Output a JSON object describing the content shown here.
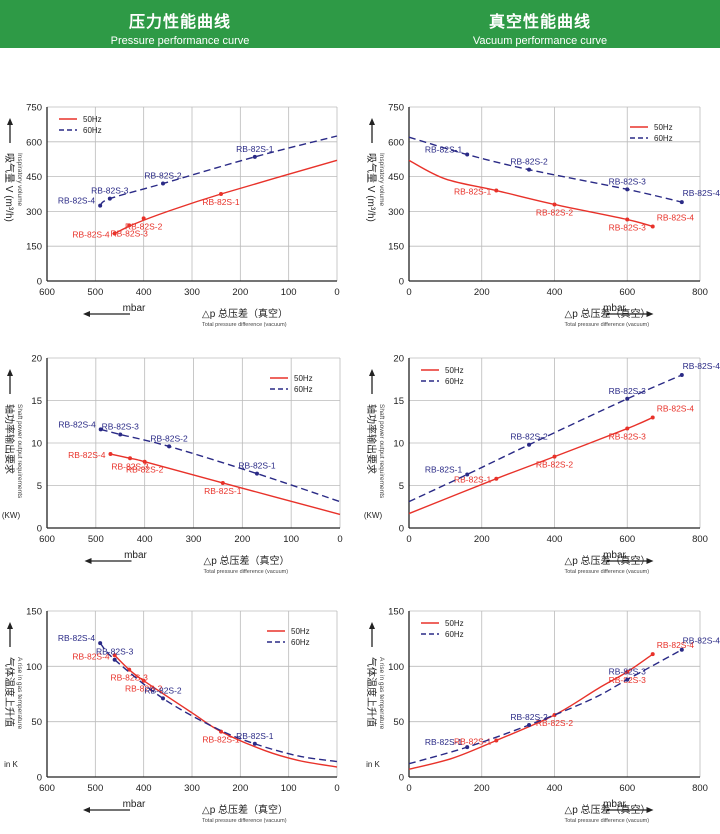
{
  "banners": {
    "left": {
      "cn": "压力性能曲线",
      "en": "Pressure performance curve"
    },
    "right": {
      "cn": "真空性能曲线",
      "en": "Vacuum performance curve"
    }
  },
  "colors": {
    "s50": "#e8322a",
    "s60": "#2a2a86",
    "axis": "#222222",
    "grid": "#bbbbbb",
    "banner": "#2e9a46"
  },
  "chart_data": [
    {
      "id": "pressure-volume",
      "type": "line",
      "xlim": [
        600,
        0
      ],
      "ylim": [
        0,
        750
      ],
      "xticks": [
        600,
        500,
        400,
        300,
        200,
        100,
        0
      ],
      "yticks": [
        0,
        150,
        300,
        450,
        600,
        750
      ],
      "ylabel": {
        "cn": "吸气量 V (m³/h)",
        "en": "Inspiratory volume"
      },
      "xlabel": {
        "unit": "mbar",
        "cn": "△p  总压差（真空）",
        "en": "Total pressure difference (vacuum)"
      },
      "legend": "top-left",
      "series": [
        {
          "name": "50Hz",
          "points": [
            [
              460,
              205
            ],
            [
              420,
              245
            ],
            [
              350,
              300
            ],
            [
              240,
              375
            ],
            [
              0,
              520
            ]
          ],
          "markers": [
            {
              "label": "RB-82S-4",
              "x": 460,
              "y": 205
            },
            {
              "label": "RB-82S-3",
              "x": 430,
              "y": 240
            },
            {
              "label": "RB-82S-2",
              "x": 400,
              "y": 270
            },
            {
              "label": "RB-82S-1",
              "x": 240,
              "y": 375
            }
          ]
        },
        {
          "name": "60Hz",
          "points": [
            [
              490,
              325
            ],
            [
              470,
              355
            ],
            [
              360,
              420
            ],
            [
              170,
              535
            ],
            [
              0,
              625
            ]
          ],
          "markers": [
            {
              "label": "RB-82S-4",
              "x": 490,
              "y": 325
            },
            {
              "label": "RB-82S-3",
              "x": 470,
              "y": 355
            },
            {
              "label": "RB-82S-2",
              "x": 360,
              "y": 420
            },
            {
              "label": "RB-82S-1",
              "x": 170,
              "y": 535
            }
          ]
        }
      ]
    },
    {
      "id": "vacuum-volume",
      "type": "line",
      "xlim": [
        0,
        800
      ],
      "ylim": [
        0,
        750
      ],
      "xticks": [
        0,
        200,
        400,
        600,
        800
      ],
      "yticks": [
        0,
        150,
        300,
        450,
        600,
        750
      ],
      "ylabel": {
        "cn": "吸气量 V (m³/h)",
        "en": "Inspiratory volume"
      },
      "xlabel": {
        "unit": "mbar",
        "cn": "△p  总压差（真空）",
        "en": "Total pressure difference (vacuum)"
      },
      "legend": "top-right",
      "series": [
        {
          "name": "50Hz",
          "points": [
            [
              0,
              520
            ],
            [
              100,
              440
            ],
            [
              240,
              390
            ],
            [
              400,
              330
            ],
            [
              600,
              265
            ],
            [
              670,
              235
            ]
          ],
          "markers": [
            {
              "label": "RB-82S-1",
              "x": 240,
              "y": 390
            },
            {
              "label": "RB-82S-2",
              "x": 400,
              "y": 330
            },
            {
              "label": "RB-82S-3",
              "x": 600,
              "y": 265
            },
            {
              "label": "RB-82S-4",
              "x": 670,
              "y": 235
            }
          ]
        },
        {
          "name": "60Hz",
          "points": [
            [
              0,
              620
            ],
            [
              160,
              545
            ],
            [
              330,
              480
            ],
            [
              600,
              395
            ],
            [
              750,
              340
            ]
          ],
          "markers": [
            {
              "label": "RB-82S-1",
              "x": 160,
              "y": 545
            },
            {
              "label": "RB-82S-2",
              "x": 330,
              "y": 480
            },
            {
              "label": "RB-82S-3",
              "x": 600,
              "y": 395
            },
            {
              "label": "RB-82S-4",
              "x": 750,
              "y": 340
            }
          ]
        }
      ]
    },
    {
      "id": "pressure-power",
      "type": "line",
      "xlim": [
        600,
        0
      ],
      "ylim": [
        0,
        20
      ],
      "xticks": [
        600,
        500,
        400,
        300,
        200,
        100,
        0
      ],
      "yticks": [
        0,
        5,
        10,
        15,
        20
      ],
      "ylabel": {
        "cn": "轴功率输出要求",
        "en": "Shaft power output requirements",
        "unit": "(KW)"
      },
      "xlabel": {
        "unit": "mbar",
        "cn": "△p  总压差（真空）",
        "en": "Total pressure difference (vacuum)"
      },
      "legend": "top-right",
      "series": [
        {
          "name": "50Hz",
          "points": [
            [
              470,
              8.7
            ],
            [
              430,
              8.2
            ],
            [
              400,
              7.8
            ],
            [
              240,
              5.3
            ],
            [
              0,
              1.6
            ]
          ],
          "markers": [
            {
              "label": "RB-82S-4",
              "x": 470,
              "y": 8.7
            },
            {
              "label": "RB-82S-3",
              "x": 430,
              "y": 8.2
            },
            {
              "label": "RB-82S-2",
              "x": 400,
              "y": 7.8
            },
            {
              "label": "RB-82S-1",
              "x": 240,
              "y": 5.3
            }
          ]
        },
        {
          "name": "60Hz",
          "points": [
            [
              490,
              11.6
            ],
            [
              450,
              11.0
            ],
            [
              350,
              9.6
            ],
            [
              170,
              6.4
            ],
            [
              0,
              3.1
            ]
          ],
          "markers": [
            {
              "label": "RB-82S-4",
              "x": 490,
              "y": 11.6
            },
            {
              "label": "RB-82S-3",
              "x": 450,
              "y": 11.0
            },
            {
              "label": "RB-82S-2",
              "x": 350,
              "y": 9.6
            },
            {
              "label": "RB-82S-1",
              "x": 170,
              "y": 6.4
            }
          ]
        }
      ]
    },
    {
      "id": "vacuum-power",
      "type": "line",
      "xlim": [
        0,
        800
      ],
      "ylim": [
        0,
        20
      ],
      "xticks": [
        0,
        200,
        400,
        600,
        800
      ],
      "yticks": [
        0,
        5,
        10,
        15,
        20
      ],
      "ylabel": {
        "cn": "轴功率输出要求",
        "en": "Shaft power output requirements",
        "unit": "(KW)"
      },
      "xlabel": {
        "unit": "mbar",
        "cn": "△p  总压差（真空）",
        "en": "Total pressure difference (vacuum)"
      },
      "legend": "top-left",
      "series": [
        {
          "name": "50Hz",
          "points": [
            [
              0,
              1.7
            ],
            [
              240,
              5.8
            ],
            [
              400,
              8.4
            ],
            [
              600,
              11.7
            ],
            [
              670,
              13.0
            ]
          ],
          "markers": [
            {
              "label": "RB-82S-1",
              "x": 240,
              "y": 5.8
            },
            {
              "label": "RB-82S-2",
              "x": 400,
              "y": 8.4
            },
            {
              "label": "RB-82S-3",
              "x": 600,
              "y": 11.7
            },
            {
              "label": "RB-82S-4",
              "x": 670,
              "y": 13.0
            }
          ]
        },
        {
          "name": "60Hz",
          "points": [
            [
              0,
              3.1
            ],
            [
              160,
              6.3
            ],
            [
              330,
              9.8
            ],
            [
              600,
              15.2
            ],
            [
              750,
              18.0
            ]
          ],
          "markers": [
            {
              "label": "RB-82S-1",
              "x": 160,
              "y": 6.3
            },
            {
              "label": "RB-82S-2",
              "x": 330,
              "y": 9.8
            },
            {
              "label": "RB-82S-3",
              "x": 600,
              "y": 15.2
            },
            {
              "label": "RB-82S-4",
              "x": 750,
              "y": 18.0
            }
          ]
        }
      ]
    },
    {
      "id": "pressure-temperature",
      "type": "line",
      "xlim": [
        600,
        0
      ],
      "ylim": [
        0,
        150
      ],
      "xticks": [
        600,
        500,
        400,
        300,
        200,
        100,
        0
      ],
      "yticks": [
        0,
        50,
        100,
        150
      ],
      "ylabel": {
        "cn": "气体温度上升值",
        "en": "A rise in gas temperature",
        "unit": "in K"
      },
      "xlabel": {
        "unit": "mbar",
        "cn": "△p  总压差（真空）",
        "en": "Total pressure difference (vacuum)"
      },
      "legend": "top-right",
      "series": [
        {
          "name": "50Hz",
          "points": [
            [
              460,
              110
            ],
            [
              430,
              97
            ],
            [
              400,
              87
            ],
            [
              300,
              58
            ],
            [
              240,
              41
            ],
            [
              150,
              24
            ],
            [
              80,
              15
            ],
            [
              0,
              9
            ]
          ],
          "markers": [
            {
              "label": "RB-82S-4",
              "x": 460,
              "y": 110
            },
            {
              "label": "RB-82S-3",
              "x": 430,
              "y": 97
            },
            {
              "label": "RB-82S-2",
              "x": 400,
              "y": 87
            },
            {
              "label": "RB-82S-1",
              "x": 240,
              "y": 41
            }
          ]
        },
        {
          "name": "60Hz",
          "points": [
            [
              490,
              121
            ],
            [
              460,
              106
            ],
            [
              360,
              71
            ],
            [
              250,
              44
            ],
            [
              170,
              30
            ],
            [
              80,
              19
            ],
            [
              0,
              14
            ]
          ],
          "markers": [
            {
              "label": "RB-82S-4",
              "x": 490,
              "y": 121
            },
            {
              "label": "RB-82S-3",
              "x": 460,
              "y": 106
            },
            {
              "label": "RB-82S-2",
              "x": 360,
              "y": 71
            },
            {
              "label": "RB-82S-1",
              "x": 170,
              "y": 30
            }
          ]
        }
      ]
    },
    {
      "id": "vacuum-temperature",
      "type": "line",
      "xlim": [
        0,
        800
      ],
      "ylim": [
        0,
        150
      ],
      "xticks": [
        0,
        200,
        400,
        600,
        800
      ],
      "yticks": [
        0,
        50,
        100,
        150
      ],
      "ylabel": {
        "cn": "气体温度上升值",
        "en": "A rise in gas temperature",
        "unit": "in K"
      },
      "xlabel": {
        "unit": "mbar",
        "cn": "△p  总压差（真空）",
        "en": "Total pressure difference (vacuum)"
      },
      "legend": "top-left",
      "series": [
        {
          "name": "50Hz",
          "points": [
            [
              0,
              7
            ],
            [
              120,
              17
            ],
            [
              240,
              33
            ],
            [
              400,
              56
            ],
            [
              520,
              80
            ],
            [
              600,
              95
            ],
            [
              670,
              111
            ]
          ],
          "markers": [
            {
              "label": "RB-82S-1",
              "x": 240,
              "y": 33
            },
            {
              "label": "RB-82S-2",
              "x": 400,
              "y": 56
            },
            {
              "label": "RB-82S-3",
              "x": 600,
              "y": 95
            },
            {
              "label": "RB-82S-4",
              "x": 670,
              "y": 111
            }
          ]
        },
        {
          "name": "60Hz",
          "points": [
            [
              0,
              12
            ],
            [
              160,
              27
            ],
            [
              330,
              47
            ],
            [
              500,
              70
            ],
            [
              600,
              88
            ],
            [
              750,
              115
            ]
          ],
          "markers": [
            {
              "label": "RB-82S-1",
              "x": 160,
              "y": 27
            },
            {
              "label": "RB-82S-2",
              "x": 330,
              "y": 47
            },
            {
              "label": "RB-82S-3",
              "x": 600,
              "y": 88
            },
            {
              "label": "RB-82S-4",
              "x": 750,
              "y": 115
            }
          ]
        }
      ]
    }
  ]
}
